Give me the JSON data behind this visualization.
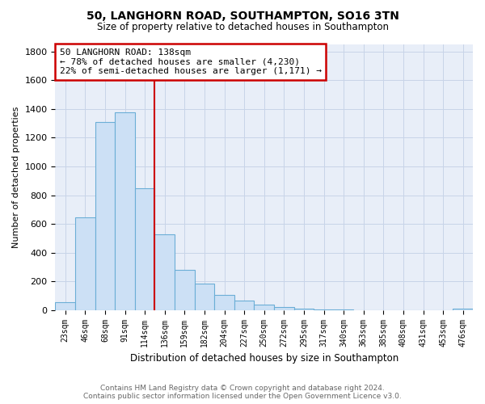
{
  "title": "50, LANGHORN ROAD, SOUTHAMPTON, SO16 3TN",
  "subtitle": "Size of property relative to detached houses in Southampton",
  "xlabel": "Distribution of detached houses by size in Southampton",
  "ylabel": "Number of detached properties",
  "bar_labels": [
    "23sqm",
    "46sqm",
    "68sqm",
    "91sqm",
    "114sqm",
    "136sqm",
    "159sqm",
    "182sqm",
    "204sqm",
    "227sqm",
    "250sqm",
    "272sqm",
    "295sqm",
    "317sqm",
    "340sqm",
    "363sqm",
    "385sqm",
    "408sqm",
    "431sqm",
    "453sqm",
    "476sqm"
  ],
  "bar_values": [
    55,
    645,
    1310,
    1375,
    850,
    530,
    280,
    185,
    105,
    68,
    35,
    22,
    12,
    5,
    2,
    1,
    1,
    0,
    0,
    0,
    8
  ],
  "bar_color": "#cce0f5",
  "bar_edge_color": "#6baed6",
  "highlight_line_color": "#cc0000",
  "annotation_line1": "50 LANGHORN ROAD: 138sqm",
  "annotation_line2": "← 78% of detached houses are smaller (4,230)",
  "annotation_line3": "22% of semi-detached houses are larger (1,171) →",
  "annotation_box_color": "#cc0000",
  "ylim": [
    0,
    1850
  ],
  "yticks": [
    0,
    200,
    400,
    600,
    800,
    1000,
    1200,
    1400,
    1600,
    1800
  ],
  "footer_line1": "Contains HM Land Registry data © Crown copyright and database right 2024.",
  "footer_line2": "Contains public sector information licensed under the Open Government Licence v3.0.",
  "background_color": "#ffffff",
  "grid_color": "#c8d4e8"
}
